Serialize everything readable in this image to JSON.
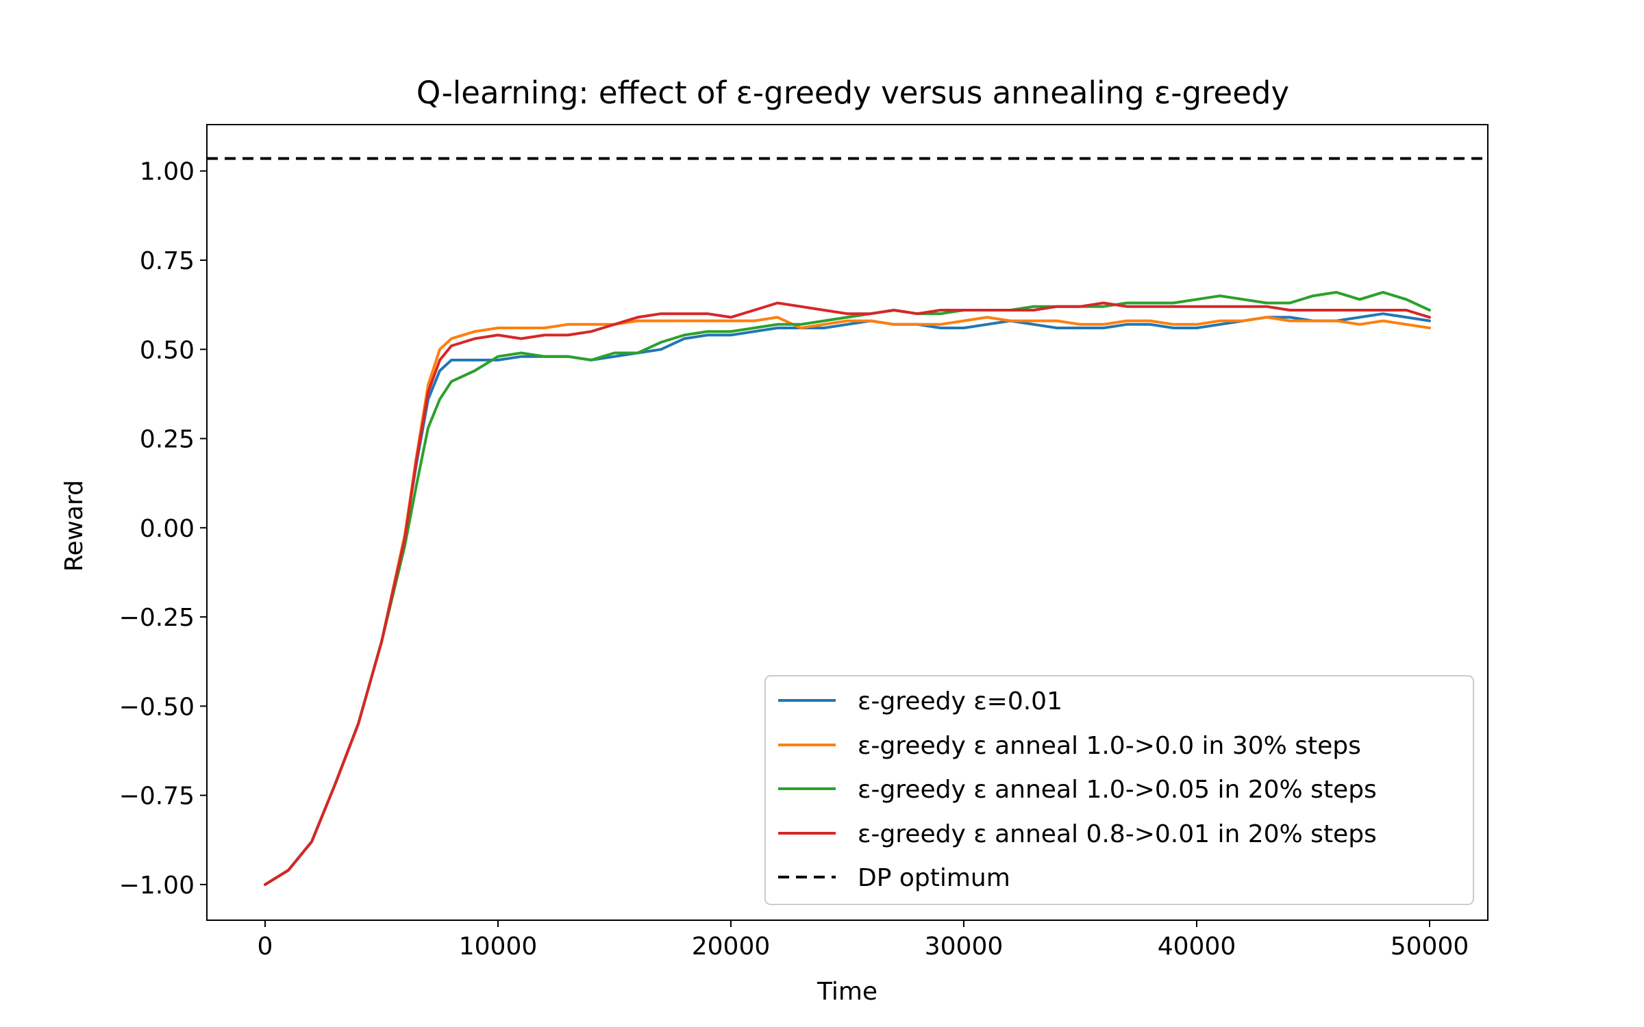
{
  "chart_data": {
    "type": "line",
    "title": "Q-learning: effect of ε-greedy versus annealing ε-greedy",
    "xlabel": "Time",
    "ylabel": "Reward",
    "xlim": [
      -2500,
      52500
    ],
    "ylim": [
      -1.1,
      1.13
    ],
    "xticks": [
      0,
      10000,
      20000,
      30000,
      40000,
      50000
    ],
    "xtick_labels": [
      "0",
      "10000",
      "20000",
      "30000",
      "40000",
      "50000"
    ],
    "yticks": [
      1.0,
      0.75,
      0.5,
      0.25,
      0.0,
      -0.25,
      -0.5,
      -0.75,
      -1.0
    ],
    "ytick_labels": [
      "1.00",
      "0.75",
      "0.50",
      "0.25",
      "0.00",
      "−0.25",
      "−0.50",
      "−0.75",
      "−1.00"
    ],
    "grid": false,
    "legend_position": "lower-right",
    "series": [
      {
        "name": "ε-greedy ε=0.01",
        "color": "#1f77b4",
        "x": [
          0,
          1000,
          2000,
          3000,
          4000,
          5000,
          6000,
          6500,
          7000,
          7500,
          8000,
          9000,
          10000,
          11000,
          12000,
          13000,
          14000,
          15000,
          16000,
          17000,
          18000,
          19000,
          20000,
          21000,
          22000,
          23000,
          24000,
          25000,
          26000,
          27000,
          28000,
          29000,
          30000,
          31000,
          32000,
          33000,
          34000,
          35000,
          36000,
          37000,
          38000,
          39000,
          40000,
          41000,
          42000,
          43000,
          44000,
          45000,
          46000,
          47000,
          48000,
          49000,
          50000
        ],
        "y": [
          -1.0,
          -0.96,
          -0.88,
          -0.72,
          -0.55,
          -0.32,
          -0.02,
          0.18,
          0.36,
          0.44,
          0.47,
          0.47,
          0.47,
          0.48,
          0.48,
          0.48,
          0.47,
          0.48,
          0.49,
          0.5,
          0.53,
          0.54,
          0.54,
          0.55,
          0.56,
          0.56,
          0.56,
          0.57,
          0.58,
          0.57,
          0.57,
          0.56,
          0.56,
          0.57,
          0.58,
          0.57,
          0.56,
          0.56,
          0.56,
          0.57,
          0.57,
          0.56,
          0.56,
          0.57,
          0.58,
          0.59,
          0.59,
          0.58,
          0.58,
          0.59,
          0.6,
          0.59,
          0.58
        ]
      },
      {
        "name": "ε-greedy ε anneal 1.0->0.0 in 30% steps",
        "color": "#ff7f0e",
        "x": [
          0,
          1000,
          2000,
          3000,
          4000,
          5000,
          6000,
          6500,
          7000,
          7500,
          8000,
          9000,
          10000,
          11000,
          12000,
          13000,
          14000,
          15000,
          16000,
          17000,
          18000,
          19000,
          20000,
          21000,
          22000,
          23000,
          24000,
          25000,
          26000,
          27000,
          28000,
          29000,
          30000,
          31000,
          32000,
          33000,
          34000,
          35000,
          36000,
          37000,
          38000,
          39000,
          40000,
          41000,
          42000,
          43000,
          44000,
          45000,
          46000,
          47000,
          48000,
          49000,
          50000
        ],
        "y": [
          -1.0,
          -0.96,
          -0.88,
          -0.72,
          -0.55,
          -0.32,
          -0.02,
          0.2,
          0.4,
          0.5,
          0.53,
          0.55,
          0.56,
          0.56,
          0.56,
          0.57,
          0.57,
          0.57,
          0.58,
          0.58,
          0.58,
          0.58,
          0.58,
          0.58,
          0.59,
          0.56,
          0.57,
          0.58,
          0.58,
          0.57,
          0.57,
          0.57,
          0.58,
          0.59,
          0.58,
          0.58,
          0.58,
          0.57,
          0.57,
          0.58,
          0.58,
          0.57,
          0.57,
          0.58,
          0.58,
          0.59,
          0.58,
          0.58,
          0.58,
          0.57,
          0.58,
          0.57,
          0.56
        ]
      },
      {
        "name": "ε-greedy ε anneal 1.0->0.05 in 20% steps",
        "color": "#2ca02c",
        "x": [
          0,
          1000,
          2000,
          3000,
          4000,
          5000,
          6000,
          6500,
          7000,
          7500,
          8000,
          9000,
          10000,
          11000,
          12000,
          13000,
          14000,
          15000,
          16000,
          17000,
          18000,
          19000,
          20000,
          21000,
          22000,
          23000,
          24000,
          25000,
          26000,
          27000,
          28000,
          29000,
          30000,
          31000,
          32000,
          33000,
          34000,
          35000,
          36000,
          37000,
          38000,
          39000,
          40000,
          41000,
          42000,
          43000,
          44000,
          45000,
          46000,
          47000,
          48000,
          49000,
          50000
        ],
        "y": [
          -1.0,
          -0.96,
          -0.88,
          -0.72,
          -0.55,
          -0.32,
          -0.05,
          0.12,
          0.28,
          0.36,
          0.41,
          0.44,
          0.48,
          0.49,
          0.48,
          0.48,
          0.47,
          0.49,
          0.49,
          0.52,
          0.54,
          0.55,
          0.55,
          0.56,
          0.57,
          0.57,
          0.58,
          0.59,
          0.6,
          0.61,
          0.6,
          0.6,
          0.61,
          0.61,
          0.61,
          0.62,
          0.62,
          0.62,
          0.62,
          0.63,
          0.63,
          0.63,
          0.64,
          0.65,
          0.64,
          0.63,
          0.63,
          0.65,
          0.66,
          0.64,
          0.66,
          0.64,
          0.61
        ]
      },
      {
        "name": "ε-greedy ε anneal 0.8->0.01 in 20% steps",
        "color": "#d62728",
        "x": [
          0,
          1000,
          2000,
          3000,
          4000,
          5000,
          6000,
          6500,
          7000,
          7500,
          8000,
          9000,
          10000,
          11000,
          12000,
          13000,
          14000,
          15000,
          16000,
          17000,
          18000,
          19000,
          20000,
          21000,
          22000,
          23000,
          24000,
          25000,
          26000,
          27000,
          28000,
          29000,
          30000,
          31000,
          32000,
          33000,
          34000,
          35000,
          36000,
          37000,
          38000,
          39000,
          40000,
          41000,
          42000,
          43000,
          44000,
          45000,
          46000,
          47000,
          48000,
          49000,
          50000
        ],
        "y": [
          -1.0,
          -0.96,
          -0.88,
          -0.72,
          -0.55,
          -0.32,
          -0.03,
          0.19,
          0.38,
          0.47,
          0.51,
          0.53,
          0.54,
          0.53,
          0.54,
          0.54,
          0.55,
          0.57,
          0.59,
          0.6,
          0.6,
          0.6,
          0.59,
          0.61,
          0.63,
          0.62,
          0.61,
          0.6,
          0.6,
          0.61,
          0.6,
          0.61,
          0.61,
          0.61,
          0.61,
          0.61,
          0.62,
          0.62,
          0.63,
          0.62,
          0.62,
          0.62,
          0.62,
          0.62,
          0.62,
          0.62,
          0.61,
          0.61,
          0.61,
          0.61,
          0.61,
          0.61,
          0.59
        ]
      },
      {
        "name": "DP optimum",
        "color": "#000000",
        "dashed": true,
        "hline": 1.035
      }
    ]
  }
}
